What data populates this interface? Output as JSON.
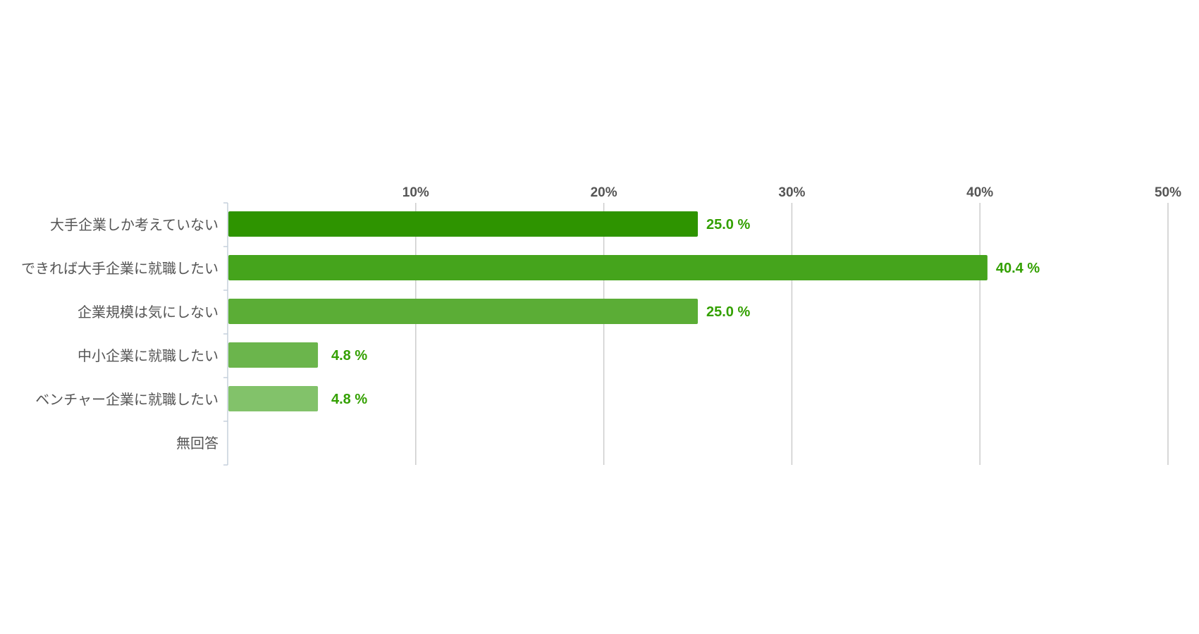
{
  "chart_data": {
    "type": "bar",
    "orientation": "horizontal",
    "categories": [
      "大手企業しか考えていない",
      "できれば大手企業に就職したい",
      "企業規模は気にしない",
      "中小企業に就職したい",
      "ベンチャー企業に就職したい",
      "無回答"
    ],
    "values": [
      25.0,
      40.4,
      25.0,
      4.8,
      4.8,
      0
    ],
    "value_labels": [
      "25.0 %",
      "40.4 %",
      "25.0 %",
      "4.8 %",
      "4.8 %",
      ""
    ],
    "bar_colors": [
      "#2e9400",
      "#45a41c",
      "#5bad36",
      "#6bb54c",
      "#82c26a",
      "#9ccc88"
    ],
    "value_label_color": "#33a000",
    "xlim": [
      0,
      50
    ],
    "xticks": [
      10,
      20,
      30,
      40,
      50
    ],
    "xtick_labels": [
      "10%",
      "20%",
      "30%",
      "40%",
      "50%"
    ],
    "xaxis_position": "top",
    "grid": true
  }
}
